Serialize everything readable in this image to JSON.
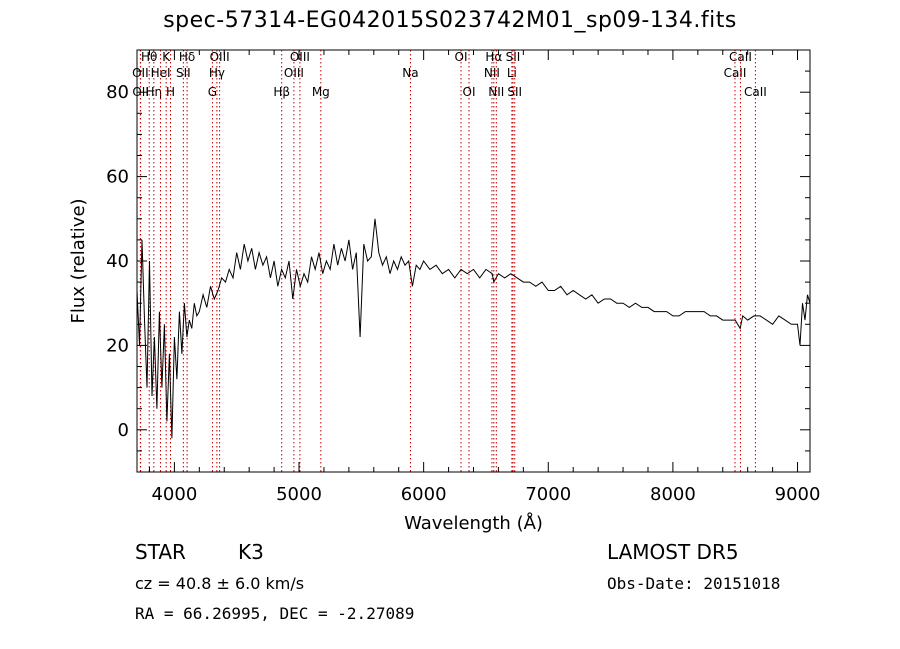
{
  "title": "spec-57314-EG042015S023742M01_sp09-134.fits",
  "footer": {
    "object_class": "STAR",
    "subclass": "K3",
    "survey": "LAMOST DR5",
    "redshift_text": "cz = 40.8 ± 6.0 km/s",
    "obs_date_text": "Obs-Date: 20151018",
    "coords_text": "RA =  66.26995, DEC =  -2.27089"
  },
  "chart_data": {
    "type": "line",
    "xlabel": "Wavelength (Å)",
    "ylabel": "Flux (relative)",
    "xlim": [
      3700,
      9100
    ],
    "ylim": [
      -10,
      90
    ],
    "xticks": [
      4000,
      5000,
      6000,
      7000,
      8000,
      9000
    ],
    "yticks": [
      0,
      20,
      40,
      60,
      80
    ],
    "grid": false,
    "series": [
      {
        "color": "#000000",
        "x": [
          3700,
          3720,
          3740,
          3760,
          3780,
          3800,
          3820,
          3840,
          3860,
          3880,
          3900,
          3920,
          3940,
          3960,
          3980,
          4000,
          4020,
          4040,
          4060,
          4080,
          4100,
          4120,
          4140,
          4160,
          4180,
          4200,
          4230,
          4260,
          4290,
          4320,
          4350,
          4380,
          4410,
          4440,
          4470,
          4500,
          4530,
          4560,
          4590,
          4620,
          4650,
          4680,
          4710,
          4740,
          4770,
          4800,
          4830,
          4860,
          4890,
          4920,
          4950,
          4980,
          5010,
          5040,
          5070,
          5100,
          5130,
          5160,
          5190,
          5220,
          5250,
          5280,
          5310,
          5340,
          5370,
          5400,
          5430,
          5460,
          5490,
          5520,
          5550,
          5580,
          5610,
          5640,
          5670,
          5700,
          5730,
          5760,
          5790,
          5820,
          5850,
          5880,
          5910,
          5940,
          5970,
          6000,
          6050,
          6100,
          6150,
          6200,
          6250,
          6300,
          6350,
          6400,
          6450,
          6500,
          6550,
          6563,
          6600,
          6650,
          6700,
          6750,
          6800,
          6850,
          6900,
          6950,
          7000,
          7050,
          7100,
          7150,
          7200,
          7250,
          7300,
          7350,
          7400,
          7450,
          7500,
          7550,
          7600,
          7650,
          7700,
          7750,
          7800,
          7850,
          7900,
          7950,
          8000,
          8050,
          8100,
          8150,
          8200,
          8250,
          8300,
          8350,
          8400,
          8450,
          8500,
          8540,
          8560,
          8600,
          8650,
          8700,
          8750,
          8800,
          8850,
          8900,
          8950,
          9000,
          9020,
          9040,
          9060,
          9080,
          9100
        ],
        "y": [
          33,
          20,
          45,
          26,
          10,
          40,
          8,
          22,
          5,
          28,
          10,
          25,
          2,
          18,
          -2,
          22,
          12,
          28,
          18,
          30,
          22,
          26,
          24,
          30,
          27,
          28,
          32,
          29,
          34,
          31,
          33,
          36,
          35,
          38,
          36,
          42,
          38,
          44,
          40,
          43,
          38,
          42,
          39,
          41,
          36,
          40,
          34,
          38,
          36,
          40,
          31,
          38,
          34,
          37,
          35,
          41,
          38,
          42,
          37,
          40,
          38,
          44,
          39,
          43,
          40,
          45,
          38,
          42,
          22,
          44,
          40,
          41,
          50,
          42,
          39,
          41,
          37,
          40,
          38,
          41,
          39,
          40,
          34,
          39,
          38,
          40,
          38,
          39,
          37,
          38,
          36,
          38,
          37,
          38,
          36,
          38,
          37,
          35,
          37,
          36,
          37,
          36,
          35,
          35,
          34,
          35,
          33,
          33,
          34,
          32,
          33,
          32,
          31,
          32,
          30,
          31,
          31,
          30,
          30,
          29,
          30,
          29,
          29,
          28,
          28,
          28,
          27,
          27,
          28,
          28,
          28,
          28,
          27,
          27,
          26,
          26,
          26,
          24,
          27,
          26,
          27,
          27,
          26,
          25,
          27,
          26,
          25,
          25,
          20,
          30,
          26,
          32,
          30
        ]
      }
    ],
    "line_markers": [
      {
        "name": "OII",
        "wavelength": 3727,
        "row": 2,
        "side": "top"
      },
      {
        "name": "OII",
        "wavelength": 3729,
        "row": 3,
        "side": "top"
      },
      {
        "name": "Hθ",
        "wavelength": 3798,
        "row": 1,
        "side": "top"
      },
      {
        "name": "Hη",
        "wavelength": 3835,
        "row": 3,
        "side": "top"
      },
      {
        "name": "HeI",
        "wavelength": 3889,
        "row": 2,
        "side": "top"
      },
      {
        "name": "K",
        "wavelength": 3934,
        "row": 1,
        "side": "top"
      },
      {
        "name": "H",
        "wavelength": 3969,
        "row": 3,
        "side": "top"
      },
      {
        "name": "SII",
        "wavelength": 4072,
        "row": 2,
        "side": "top"
      },
      {
        "name": "Hδ",
        "wavelength": 4102,
        "row": 1,
        "side": "top"
      },
      {
        "name": "G",
        "wavelength": 4305,
        "row": 3,
        "side": "top"
      },
      {
        "name": "Hγ",
        "wavelength": 4341,
        "row": 2,
        "side": "top"
      },
      {
        "name": "OIII",
        "wavelength": 4363,
        "row": 1,
        "side": "top"
      },
      {
        "name": "Hβ",
        "wavelength": 4861,
        "row": 3,
        "side": "top"
      },
      {
        "name": "OIII",
        "wavelength": 4959,
        "row": 2,
        "side": "top"
      },
      {
        "name": "OIII",
        "wavelength": 5007,
        "row": 1,
        "side": "top"
      },
      {
        "name": "Mg",
        "wavelength": 5175,
        "row": 3,
        "side": "top"
      },
      {
        "name": "Na",
        "wavelength": 5894,
        "row": 2,
        "side": "top"
      },
      {
        "name": "OI",
        "wavelength": 6300,
        "row": 1,
        "side": "top"
      },
      {
        "name": "OI",
        "wavelength": 6364,
        "row": 3,
        "side": "top"
      },
      {
        "name": "NII",
        "wavelength": 6548,
        "row": 2,
        "side": "top"
      },
      {
        "name": "Hα",
        "wavelength": 6563,
        "row": 1,
        "side": "top"
      },
      {
        "name": "NII",
        "wavelength": 6583,
        "row": 3,
        "side": "top"
      },
      {
        "name": "Li",
        "wavelength": 6708,
        "row": 2,
        "side": "top"
      },
      {
        "name": "SII",
        "wavelength": 6717,
        "row": 1,
        "side": "top"
      },
      {
        "name": "SII",
        "wavelength": 6731,
        "row": 3,
        "side": "top"
      },
      {
        "name": "CaII",
        "wavelength": 8498,
        "row": 2,
        "side": "top"
      },
      {
        "name": "CaII",
        "wavelength": 8542,
        "row": 1,
        "side": "top"
      },
      {
        "name": "CaII",
        "wavelength": 8662,
        "row": 3,
        "side": "top"
      }
    ],
    "marker_color": "#c00000"
  }
}
